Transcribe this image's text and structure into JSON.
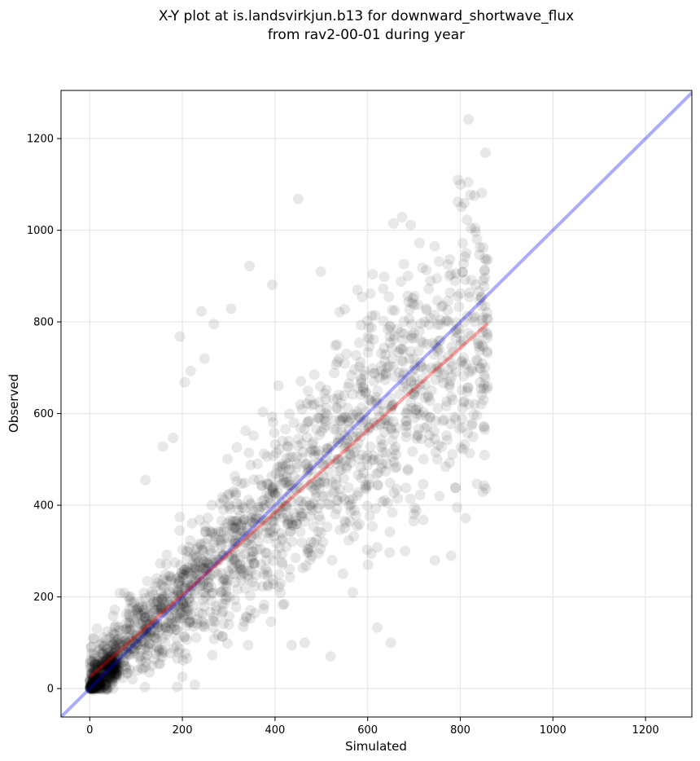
{
  "chart_data": {
    "type": "scatter",
    "title": "X-Y plot at is.landsvirkjun.b13 for downward_shortwave_flux",
    "subtitle": "from rav2-00-01 during year",
    "xlabel": "Simulated",
    "ylabel": "Observed",
    "xlim": [
      -62,
      1300
    ],
    "ylim": [
      -62,
      1305
    ],
    "xticks": [
      0,
      200,
      400,
      600,
      800,
      1000,
      1200
    ],
    "yticks": [
      0,
      200,
      400,
      600,
      800,
      1000,
      1200
    ],
    "grid": true,
    "point_color": "#000000",
    "point_opacity": 0.09,
    "identity_line": {
      "from": [
        -62,
        -62
      ],
      "to": [
        1300,
        1300
      ],
      "color": "#0000ff"
    },
    "regression_line": {
      "from": [
        0,
        25
      ],
      "to": [
        860,
        797
      ],
      "color": "#ff0000"
    },
    "outliers": [
      [
        818,
        1242
      ],
      [
        450,
        1068
      ],
      [
        822,
        1077
      ],
      [
        832,
        1005
      ],
      [
        836,
        980
      ],
      [
        345,
        922
      ],
      [
        499,
        910
      ],
      [
        678,
        926
      ],
      [
        773,
        925
      ],
      [
        712,
        972
      ],
      [
        394,
        881
      ],
      [
        578,
        870
      ],
      [
        606,
        862
      ],
      [
        268,
        795
      ],
      [
        241,
        823
      ],
      [
        305,
        829
      ],
      [
        195,
        768
      ],
      [
        218,
        693
      ],
      [
        205,
        668
      ],
      [
        180,
        547
      ],
      [
        158,
        528
      ],
      [
        248,
        720
      ],
      [
        120,
        455
      ],
      [
        520,
        70
      ],
      [
        464,
        100
      ],
      [
        621,
        133
      ],
      [
        650,
        100
      ],
      [
        568,
        210
      ],
      [
        601,
        270
      ],
      [
        681,
        300
      ],
      [
        780,
        290
      ],
      [
        812,
        372
      ],
      [
        745,
        280
      ],
      [
        700,
        380
      ],
      [
        755,
        420
      ],
      [
        793,
        395
      ],
      [
        853,
        565
      ],
      [
        845,
        620
      ]
    ],
    "cluster_params": {
      "n": 1750,
      "xmax": 860,
      "slope": 0.92,
      "intercept": 22,
      "noise_base": 35,
      "noise_scale": 0.15
    },
    "lowcluster_params": {
      "n": 200,
      "xmax": 60,
      "noise": 18
    }
  }
}
